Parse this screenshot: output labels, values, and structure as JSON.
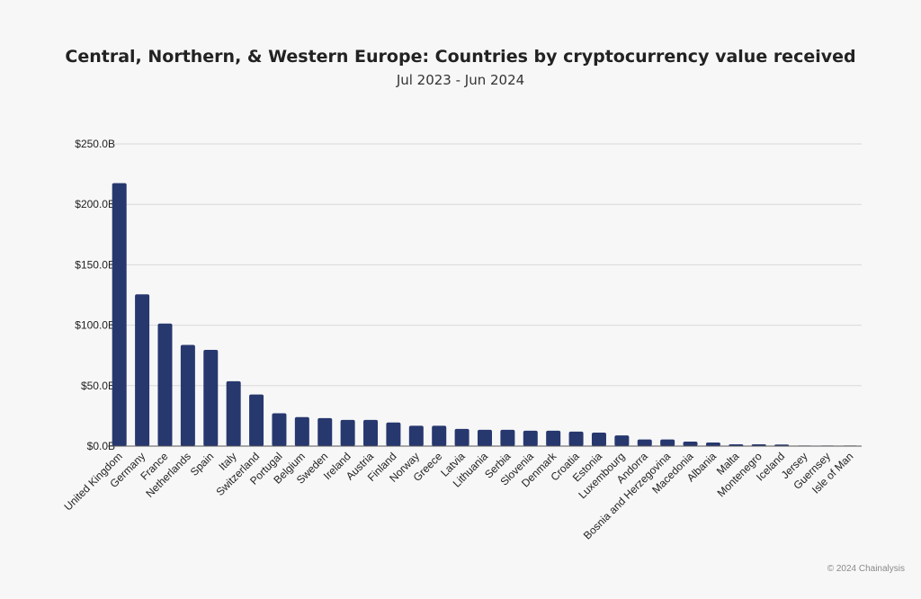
{
  "chart_data": {
    "type": "bar",
    "title": "Central, Northern, & Western Europe: Countries by cryptocurrency value received",
    "subtitle": "Jul 2023 - Jun 2024",
    "xlabel": "",
    "ylabel": "",
    "unit": "USD billions",
    "ylim": [
      0,
      250
    ],
    "yticks": [
      0,
      50,
      100,
      150,
      200,
      250
    ],
    "ytick_labels": [
      "$0.0B",
      "$50.0B",
      "$100.0B",
      "$150.0B",
      "$200.0B",
      "$250.0B"
    ],
    "grid": true,
    "bar_color": "#27386f",
    "categories": [
      "United Kingdom",
      "Germany",
      "France",
      "Netherlands",
      "Spain",
      "Italy",
      "Switzerland",
      "Portugal",
      "Belgium",
      "Sweden",
      "Ireland",
      "Austria",
      "Finland",
      "Norway",
      "Greece",
      "Latvia",
      "Lithuania",
      "Serbia",
      "Slovenia",
      "Denmark",
      "Croatia",
      "Estonia",
      "Luxembourg",
      "Andorra",
      "Bosnia and Herzegovina",
      "Macedonia",
      "Albania",
      "Malta",
      "Montenegro",
      "Iceland",
      "Jersey",
      "Guernsey",
      "Isle of Man"
    ],
    "values": [
      217.5,
      125.6,
      101.4,
      83.7,
      79.6,
      53.7,
      42.7,
      27.2,
      24.0,
      23.2,
      21.7,
      21.7,
      19.5,
      16.8,
      16.8,
      14.2,
      13.5,
      13.5,
      12.7,
      12.7,
      12.0,
      11.2,
      8.8,
      5.5,
      5.5,
      3.7,
      3.0,
      1.5,
      1.5,
      1.3,
      0.1,
      0.1,
      0.05
    ]
  },
  "footer": {
    "copyright": "© 2024 Chainalysis"
  }
}
